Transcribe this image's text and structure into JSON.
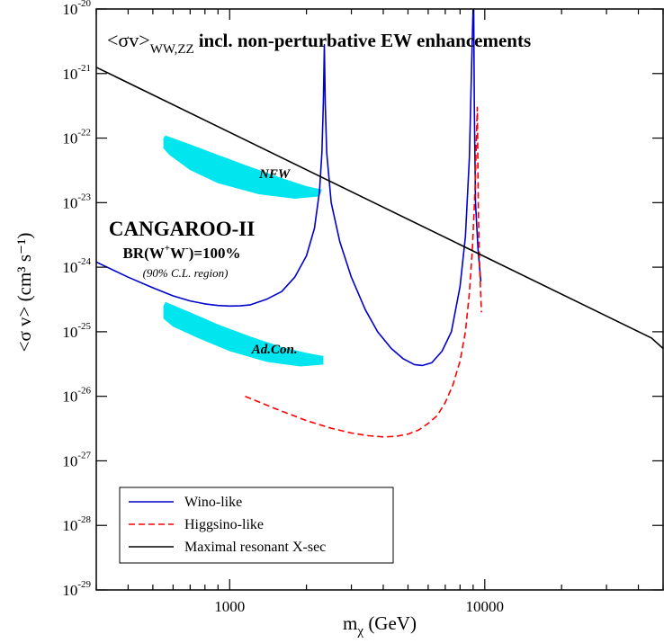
{
  "chart_data": {
    "type": "line",
    "title_prefix": "<σv>",
    "title_subscript": "WW,ZZ",
    "title": "incl. non-perturbative EW enhancements",
    "xlabel": {
      "base": "m",
      "sub": "χ",
      "rest": " (GeV)"
    },
    "ylabel": "<σ v> (cm³ s⁻¹)",
    "x_scale": "log",
    "y_scale": "log",
    "xlim": [
      300,
      50000
    ],
    "ylim": [
      1e-29,
      1e-20
    ],
    "x_ticks": [
      {
        "value": 1000,
        "label": "1000"
      },
      {
        "value": 10000,
        "label": "10000"
      }
    ],
    "y_ticks": [
      {
        "value": 1e-29,
        "base": "10",
        "exp": "-29"
      },
      {
        "value": 1e-28,
        "base": "10",
        "exp": "-28"
      },
      {
        "value": 1e-27,
        "base": "10",
        "exp": "-27"
      },
      {
        "value": 1e-26,
        "base": "10",
        "exp": "-26"
      },
      {
        "value": 1e-25,
        "base": "10",
        "exp": "-25"
      },
      {
        "value": 1e-24,
        "base": "10",
        "exp": "-24"
      },
      {
        "value": 1e-23,
        "base": "10",
        "exp": "-23"
      },
      {
        "value": 1e-22,
        "base": "10",
        "exp": "-22"
      },
      {
        "value": 1e-21,
        "base": "10",
        "exp": "-21"
      },
      {
        "value": 1e-20,
        "base": "10",
        "exp": "-20"
      }
    ],
    "grid": false,
    "legend_position": "bottom-left",
    "series": [
      {
        "name": "Wino-like",
        "color": "#0000cc",
        "dash": "solid",
        "points": [
          [
            300,
            1.2e-24
          ],
          [
            400,
            7e-25
          ],
          [
            500,
            4.8e-25
          ],
          [
            600,
            3.6e-25
          ],
          [
            700,
            3e-25
          ],
          [
            800,
            2.7e-25
          ],
          [
            900,
            2.55e-25
          ],
          [
            1000,
            2.5e-25
          ],
          [
            1100,
            2.52e-25
          ],
          [
            1200,
            2.6e-25
          ],
          [
            1400,
            3.2e-25
          ],
          [
            1600,
            4.2e-25
          ],
          [
            1800,
            7e-25
          ],
          [
            2000,
            1.5e-24
          ],
          [
            2150,
            4e-24
          ],
          [
            2250,
            1.5e-23
          ],
          [
            2300,
            6e-23
          ],
          [
            2330,
            3.5e-22
          ],
          [
            2350,
            2.8e-21
          ],
          [
            2370,
            3.5e-22
          ],
          [
            2400,
            6e-23
          ],
          [
            2500,
            1e-23
          ],
          [
            2700,
            2.5e-24
          ],
          [
            3000,
            7e-25
          ],
          [
            3400,
            2.2e-25
          ],
          [
            3800,
            1e-25
          ],
          [
            4300,
            5.5e-26
          ],
          [
            4800,
            3.8e-26
          ],
          [
            5300,
            3.1e-26
          ],
          [
            5700,
            3e-26
          ],
          [
            6200,
            3.3e-26
          ],
          [
            6800,
            5e-26
          ],
          [
            7400,
            1e-25
          ],
          [
            8000,
            5e-25
          ],
          [
            8400,
            3e-24
          ],
          [
            8700,
            5e-23
          ],
          [
            8900,
            2e-21
          ],
          [
            9000,
            1e-20
          ]
        ],
        "points_b": [
          [
            9050,
            1e-20
          ],
          [
            9100,
            3e-22
          ],
          [
            9200,
            1e-23
          ],
          [
            9400,
            2e-24
          ],
          [
            9650,
            6e-25
          ]
        ]
      },
      {
        "name": "Higgsino-like",
        "color": "#ff0000",
        "dash": "dashed",
        "points": [
          [
            1150,
            1e-26
          ],
          [
            1500,
            6.5e-27
          ],
          [
            2000,
            4.2e-27
          ],
          [
            2500,
            3.2e-27
          ],
          [
            3000,
            2.7e-27
          ],
          [
            3500,
            2.45e-27
          ],
          [
            4000,
            2.35e-27
          ],
          [
            4500,
            2.4e-27
          ],
          [
            5000,
            2.6e-27
          ],
          [
            5500,
            3e-27
          ],
          [
            6000,
            3.8e-27
          ],
          [
            6500,
            5e-27
          ],
          [
            7000,
            8e-27
          ],
          [
            7500,
            1.5e-26
          ],
          [
            8000,
            3.5e-26
          ],
          [
            8400,
            1e-25
          ],
          [
            8700,
            4e-25
          ],
          [
            8950,
            2e-24
          ],
          [
            9150,
            1.5e-23
          ],
          [
            9300,
            1.5e-22
          ],
          [
            9350,
            3e-22
          ],
          [
            9400,
            3.5e-23
          ],
          [
            9450,
            6e-24
          ],
          [
            9550,
            1e-24
          ],
          [
            9700,
            2e-25
          ]
        ]
      },
      {
        "name": "Maximal resonant X-sec",
        "color": "#000000",
        "dash": "solid",
        "points": [
          [
            300,
            1.25e-21
          ],
          [
            45000,
            8e-26
          ],
          [
            50000,
            5.5e-26
          ]
        ]
      }
    ],
    "regions": [
      {
        "label": "NFW",
        "color": "#00e5ee",
        "outline": [
          [
            560,
            1.1e-22
          ],
          [
            700,
            8e-23
          ],
          [
            900,
            5.5e-23
          ],
          [
            1200,
            3.6e-23
          ],
          [
            1600,
            2.4e-23
          ],
          [
            2000,
            1.8e-23
          ],
          [
            2300,
            1.6e-23
          ],
          [
            2250,
            1.25e-23
          ],
          [
            1800,
            1.15e-23
          ],
          [
            1300,
            1.35e-23
          ],
          [
            900,
            2e-23
          ],
          [
            700,
            3.2e-23
          ],
          [
            580,
            5.5e-23
          ],
          [
            550,
            7e-23
          ],
          [
            550,
            1e-22
          ]
        ]
      },
      {
        "label": "Ad.Con.",
        "color": "#00e5ee",
        "outline": [
          [
            560,
            2.9e-25
          ],
          [
            700,
            2e-25
          ],
          [
            900,
            1.3e-25
          ],
          [
            1200,
            8.5e-26
          ],
          [
            1600,
            5.8e-26
          ],
          [
            2000,
            4.7e-26
          ],
          [
            2330,
            4.2e-26
          ],
          [
            2330,
            3.1e-26
          ],
          [
            1900,
            2.9e-26
          ],
          [
            1400,
            3.4e-26
          ],
          [
            1000,
            5e-26
          ],
          [
            750,
            8e-26
          ],
          [
            600,
            1.2e-25
          ],
          [
            550,
            1.6e-25
          ],
          [
            550,
            2.5e-25
          ]
        ]
      }
    ],
    "annotations": {
      "experiment": "CANGAROO-II",
      "br_line": {
        "a": "BR(W",
        "sup1": "+",
        "b": "W",
        "sup2": "-",
        "c": ")=100%"
      },
      "cl_note": "(90% C.L. region)"
    }
  }
}
